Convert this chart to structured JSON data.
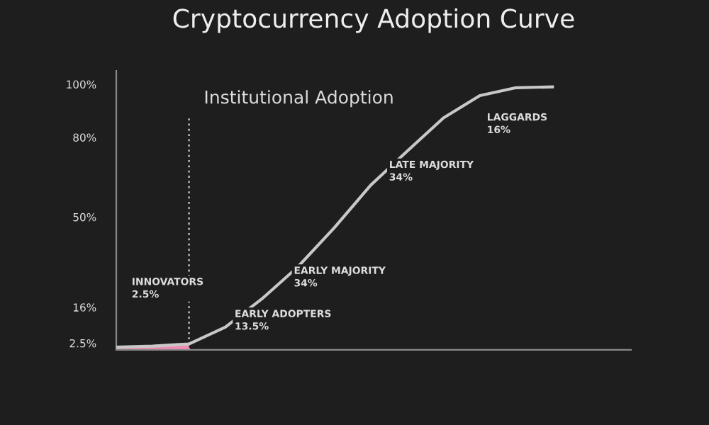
{
  "chart_data": {
    "type": "line",
    "title": "Cryptocurrency Adoption Curve",
    "categories": [
      null,
      null,
      null,
      null,
      null,
      null,
      null,
      null,
      null,
      null,
      null,
      null,
      null
    ],
    "series": [
      {
        "type": "area",
        "color": "#f08cb4",
        "values": [
          1.0,
          1.4,
          2.2,
          null,
          null,
          null,
          null,
          null,
          null,
          null,
          null,
          null,
          null
        ]
      },
      {
        "color": "#c8c8c8",
        "values": [
          1.0,
          1.4,
          2.2,
          8.5,
          19.1,
          31.3,
          46,
          62,
          74.8,
          87.3,
          95.7,
          98.7,
          99
        ]
      }
    ],
    "ylim": [
      0,
      105
    ],
    "yticks": [
      {
        "value": 2.5,
        "label": "2.5%"
      },
      {
        "value": 16,
        "label": "16%"
      },
      {
        "value": 50,
        "label": "50%"
      },
      {
        "value": 80,
        "label": "80%"
      },
      {
        "value": 100,
        "label": "100%"
      }
    ],
    "tick_labels": "y",
    "annotations": [
      "Institutional Adoption",
      "INNOVATORS\n2.5%",
      "EARLY ADOPTERS\n13.5%",
      "EARLY MAJORITY\n34%",
      "LATE MAJORITY\n34%",
      "LAGGARDS\n16%"
    ],
    "grid": false,
    "legend": false
  }
}
